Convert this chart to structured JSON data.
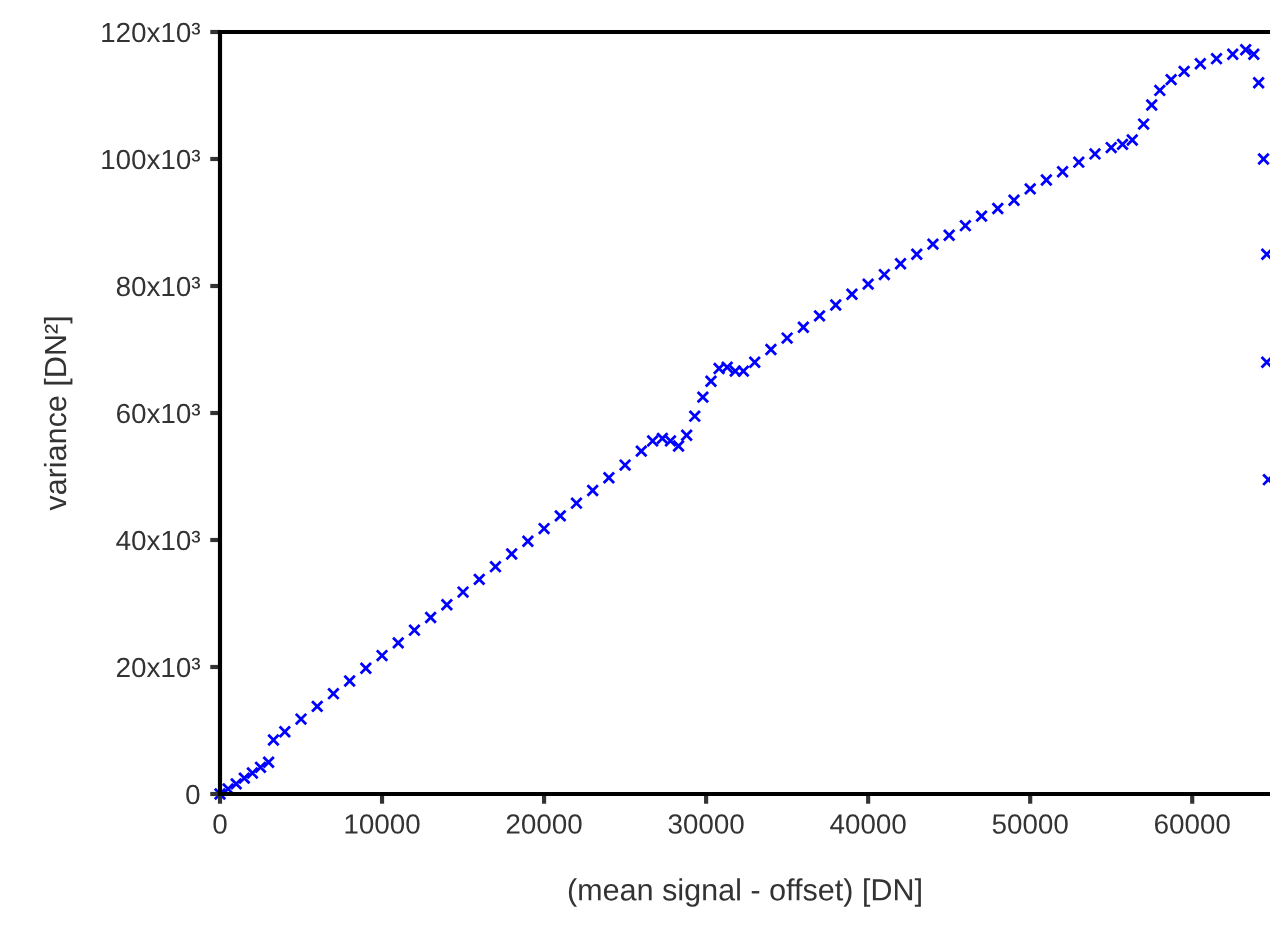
{
  "chart_data": {
    "type": "scatter",
    "xlabel": "(mean signal - offset) [DN]",
    "ylabel": "variance [DN²]",
    "marker": "cross",
    "grid": false,
    "xlim": [
      0,
      64800
    ],
    "ylim": [
      0,
      120000
    ],
    "xticks": [
      0,
      10000,
      20000,
      30000,
      40000,
      50000,
      60000
    ],
    "yticks": [
      0,
      {
        "value": 20000,
        "label": "20x10³"
      },
      {
        "value": 40000,
        "label": "40x10³"
      },
      {
        "value": 60000,
        "label": "60x10³"
      },
      {
        "value": 80000,
        "label": "80x10³"
      },
      {
        "value": 100000,
        "label": "100x10³"
      },
      {
        "value": 120000,
        "label": "120x10³"
      }
    ],
    "series": [
      {
        "color": "#0000ff",
        "x": [
          0,
          500,
          1000,
          1500,
          2000,
          2500,
          3000,
          3300,
          4000,
          5000,
          6000,
          7000,
          8000,
          9000,
          10000,
          11000,
          12000,
          13000,
          14000,
          15000,
          16000,
          17000,
          18000,
          19000,
          20000,
          21000,
          22000,
          23000,
          24000,
          25000,
          26000,
          26700,
          27300,
          27800,
          28300,
          28800,
          29300,
          29800,
          30300,
          30800,
          31300,
          31800,
          32300,
          33000,
          34000,
          35000,
          36000,
          37000,
          38000,
          39000,
          40000,
          41000,
          42000,
          43000,
          44000,
          45000,
          46000,
          47000,
          48000,
          49000,
          50000,
          51000,
          52000,
          53000,
          54000,
          55000,
          55700,
          56300,
          57000,
          57500,
          58000,
          58700,
          59500,
          60500,
          61500,
          62500,
          63300,
          63800,
          64100,
          64400,
          64600,
          64600,
          64700
        ],
        "values": [
          0,
          800,
          1600,
          2500,
          3300,
          4200,
          5000,
          8500,
          9800,
          11800,
          13800,
          15800,
          17800,
          19800,
          21800,
          23800,
          25800,
          27800,
          29800,
          31800,
          33800,
          35800,
          37800,
          39800,
          41800,
          43800,
          45800,
          47800,
          49800,
          51800,
          54000,
          55600,
          56000,
          55600,
          54800,
          56500,
          59500,
          62500,
          65000,
          67000,
          67200,
          66600,
          66600,
          68000,
          70000,
          71800,
          73500,
          75300,
          77000,
          78700,
          80300,
          81800,
          83500,
          85000,
          86600,
          88000,
          89500,
          91000,
          92200,
          93500,
          95300,
          96700,
          98000,
          99500,
          100800,
          101800,
          102300,
          103000,
          105500,
          108500,
          110800,
          112500,
          113800,
          115000,
          115800,
          116500,
          117200,
          116500,
          112000,
          100000,
          85000,
          68000,
          49500
        ]
      }
    ]
  }
}
